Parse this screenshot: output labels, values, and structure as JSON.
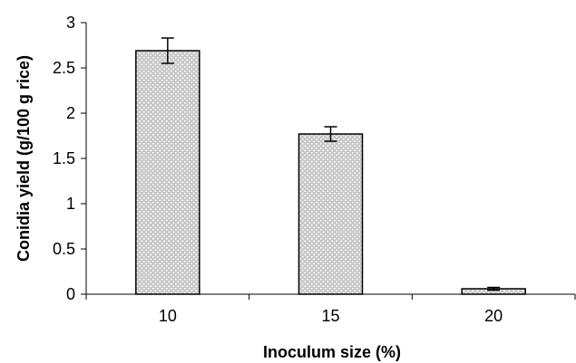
{
  "chart_data": {
    "type": "bar",
    "title": "",
    "xlabel": "Inoculum size (%)",
    "ylabel": "Conidia yield (g/100 g rice)",
    "categories": [
      "10",
      "15",
      "20"
    ],
    "values": [
      2.69,
      1.77,
      0.06
    ],
    "error": [
      0.14,
      0.08,
      0.015
    ],
    "ylim": [
      0,
      3
    ],
    "yticks": [
      "0",
      "0.5",
      "1",
      "1.5",
      "2",
      "2.5",
      "3"
    ],
    "yticks_values": [
      0,
      0.5,
      1,
      1.5,
      2,
      2.5,
      3
    ],
    "grid": false,
    "legend": "none",
    "bar_fill": "#c8c8c8",
    "bar_pattern_color": "#ffffff",
    "bar_stroke": "#000000"
  }
}
